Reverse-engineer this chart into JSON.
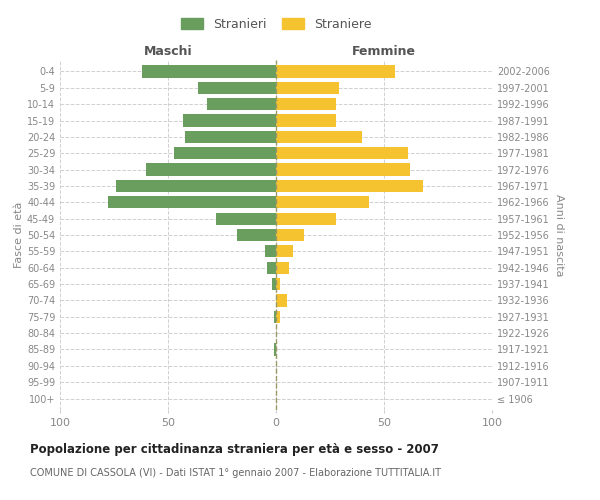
{
  "age_groups": [
    "100+",
    "95-99",
    "90-94",
    "85-89",
    "80-84",
    "75-79",
    "70-74",
    "65-69",
    "60-64",
    "55-59",
    "50-54",
    "45-49",
    "40-44",
    "35-39",
    "30-34",
    "25-29",
    "20-24",
    "15-19",
    "10-14",
    "5-9",
    "0-4"
  ],
  "birth_years": [
    "≤ 1906",
    "1907-1911",
    "1912-1916",
    "1917-1921",
    "1922-1926",
    "1927-1931",
    "1932-1936",
    "1937-1941",
    "1942-1946",
    "1947-1951",
    "1952-1956",
    "1957-1961",
    "1962-1966",
    "1967-1971",
    "1972-1976",
    "1977-1981",
    "1982-1986",
    "1987-1991",
    "1992-1996",
    "1997-2001",
    "2002-2006"
  ],
  "maschi": [
    0,
    0,
    0,
    1,
    0,
    1,
    0,
    2,
    4,
    5,
    18,
    28,
    78,
    74,
    60,
    47,
    42,
    43,
    32,
    36,
    62
  ],
  "femmine": [
    0,
    0,
    0,
    0,
    0,
    2,
    5,
    2,
    6,
    8,
    13,
    28,
    43,
    68,
    62,
    61,
    40,
    28,
    28,
    29,
    55
  ],
  "maschi_color": "#6a9e5e",
  "femmine_color": "#f5c230",
  "title": "Popolazione per cittadinanza straniera per età e sesso - 2007",
  "subtitle": "COMUNE DI CASSOLA (VI) - Dati ISTAT 1° gennaio 2007 - Elaborazione TUTTITALIA.IT",
  "xlabel_left": "Maschi",
  "xlabel_right": "Femmine",
  "ylabel_left": "Fasce di età",
  "ylabel_right": "Anni di nascita",
  "legend_maschi": "Stranieri",
  "legend_femmine": "Straniere",
  "xlim": 100,
  "background_color": "#ffffff",
  "grid_color": "#d0d0d0",
  "bar_height": 0.75,
  "label_color": "#888888"
}
